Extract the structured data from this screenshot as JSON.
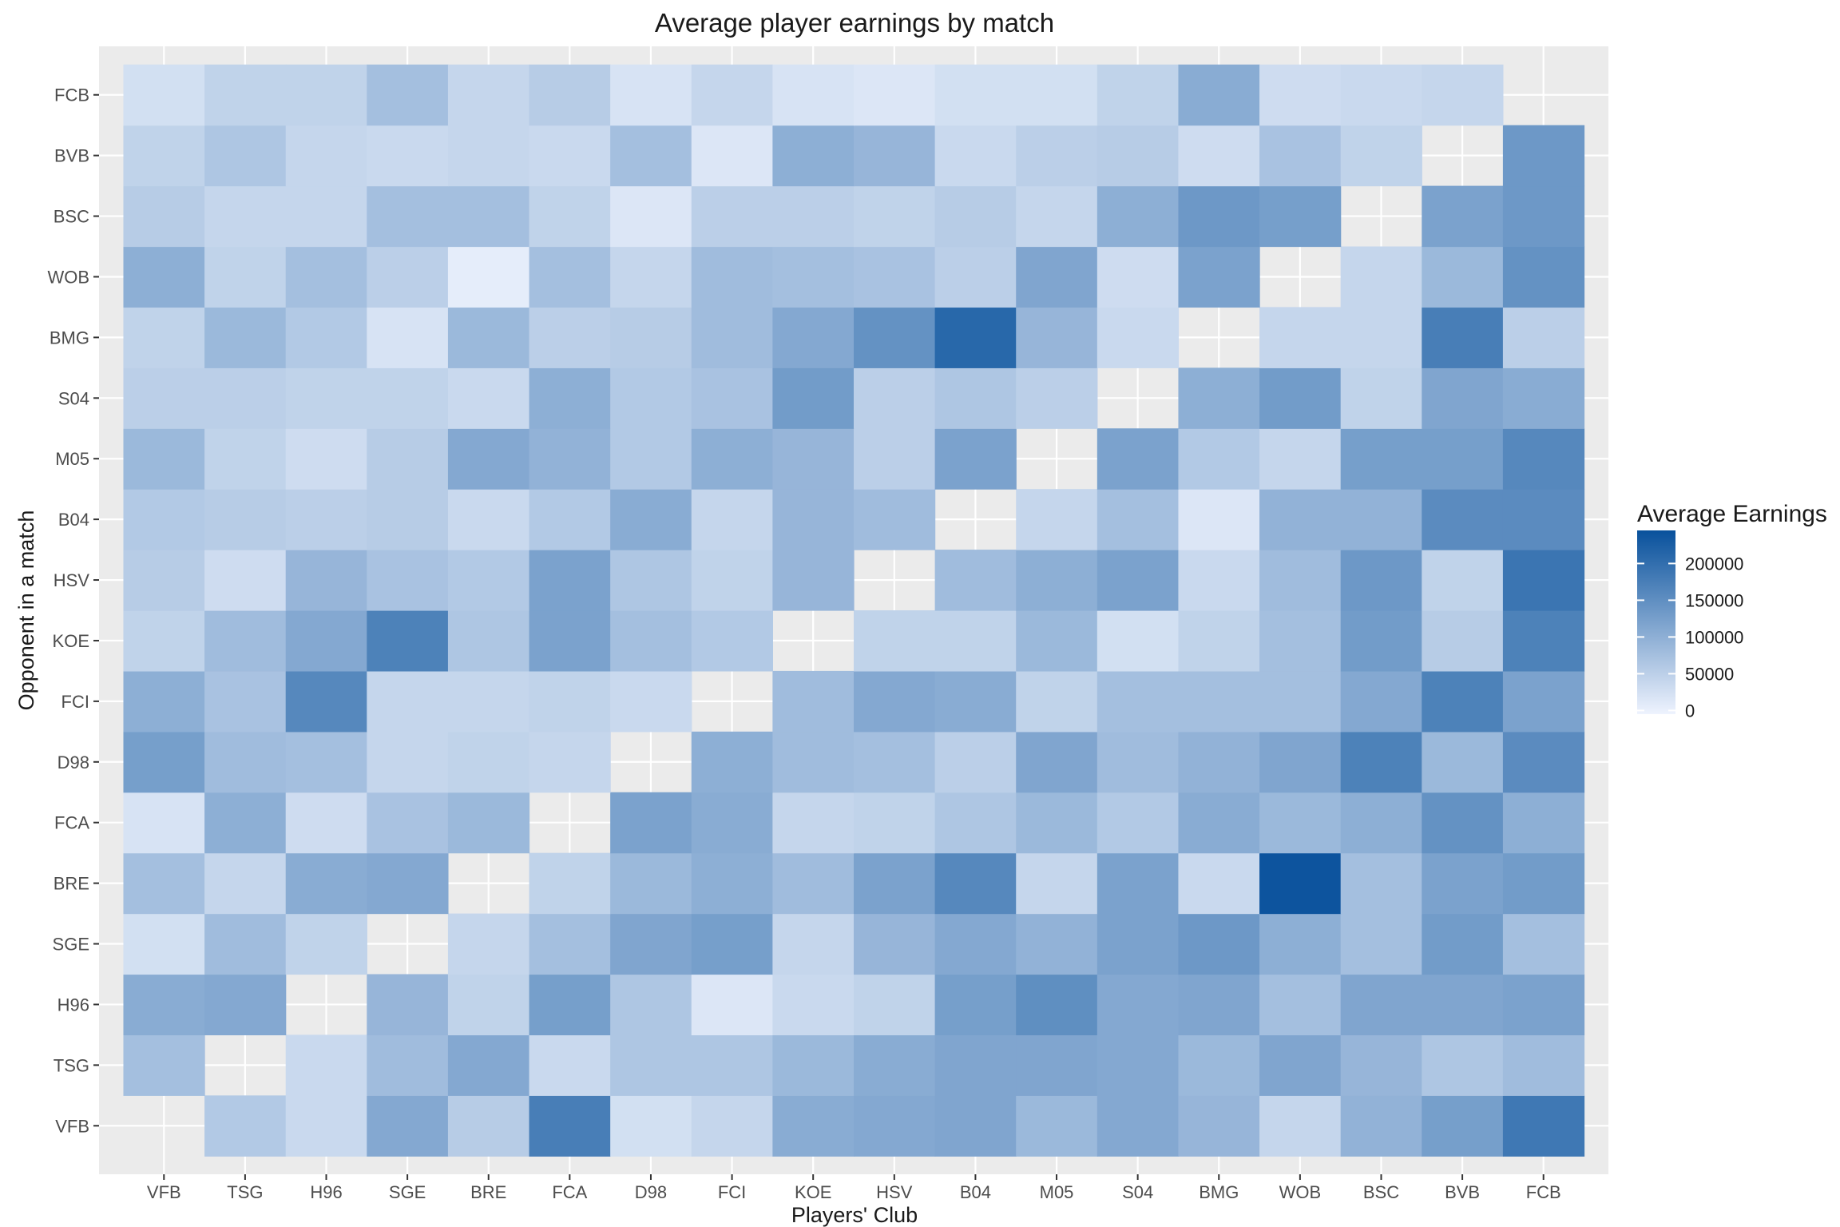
{
  "chart_data": {
    "type": "heatmap",
    "title": "Average player earnings by match",
    "xlabel": "Players' Club",
    "ylabel": "Opponent in a match",
    "x": [
      "VFB",
      "TSG",
      "H96",
      "SGE",
      "BRE",
      "FCA",
      "D98",
      "FCI",
      "KOE",
      "HSV",
      "B04",
      "M05",
      "S04",
      "BMG",
      "WOB",
      "BSC",
      "BVB",
      "FCB"
    ],
    "y": [
      "VFB",
      "TSG",
      "H96",
      "SGE",
      "BRE",
      "FCA",
      "D98",
      "FCI",
      "KOE",
      "HSV",
      "B04",
      "M05",
      "S04",
      "BMG",
      "WOB",
      "BSC",
      "BVB",
      "FCB"
    ],
    "values": [
      [
        null,
        60000,
        35000,
        110000,
        55000,
        175000,
        25000,
        40000,
        105000,
        110000,
        115000,
        85000,
        110000,
        90000,
        40000,
        95000,
        125000,
        185000
      ],
      [
        75000,
        null,
        35000,
        80000,
        110000,
        35000,
        65000,
        65000,
        85000,
        105000,
        115000,
        115000,
        110000,
        85000,
        115000,
        90000,
        65000,
        80000
      ],
      [
        105000,
        110000,
        null,
        90000,
        45000,
        125000,
        65000,
        15000,
        35000,
        45000,
        125000,
        150000,
        110000,
        115000,
        75000,
        115000,
        115000,
        120000
      ],
      [
        25000,
        80000,
        45000,
        null,
        40000,
        75000,
        115000,
        125000,
        40000,
        90000,
        110000,
        95000,
        120000,
        135000,
        100000,
        75000,
        130000,
        75000
      ],
      [
        75000,
        40000,
        105000,
        110000,
        null,
        45000,
        85000,
        100000,
        80000,
        120000,
        160000,
        40000,
        120000,
        35000,
        240000,
        75000,
        120000,
        130000
      ],
      [
        20000,
        100000,
        30000,
        70000,
        85000,
        null,
        120000,
        105000,
        40000,
        45000,
        65000,
        85000,
        60000,
        105000,
        85000,
        100000,
        145000,
        100000
      ],
      [
        125000,
        80000,
        75000,
        40000,
        45000,
        40000,
        null,
        100000,
        80000,
        75000,
        50000,
        115000,
        80000,
        95000,
        115000,
        170000,
        85000,
        155000
      ],
      [
        100000,
        70000,
        160000,
        40000,
        40000,
        45000,
        35000,
        null,
        80000,
        110000,
        105000,
        45000,
        75000,
        75000,
        75000,
        110000,
        170000,
        120000
      ],
      [
        45000,
        80000,
        110000,
        170000,
        65000,
        120000,
        75000,
        60000,
        null,
        45000,
        45000,
        85000,
        25000,
        45000,
        75000,
        130000,
        55000,
        170000
      ],
      [
        55000,
        30000,
        90000,
        70000,
        60000,
        120000,
        65000,
        45000,
        90000,
        null,
        80000,
        100000,
        120000,
        35000,
        80000,
        135000,
        45000,
        190000
      ],
      [
        60000,
        55000,
        50000,
        55000,
        35000,
        60000,
        105000,
        40000,
        90000,
        80000,
        null,
        40000,
        75000,
        15000,
        95000,
        95000,
        155000,
        155000
      ],
      [
        85000,
        45000,
        30000,
        55000,
        110000,
        95000,
        60000,
        100000,
        90000,
        50000,
        120000,
        null,
        120000,
        60000,
        40000,
        125000,
        125000,
        160000
      ],
      [
        50000,
        50000,
        45000,
        45000,
        35000,
        100000,
        60000,
        70000,
        130000,
        50000,
        65000,
        50000,
        null,
        100000,
        130000,
        45000,
        115000,
        105000
      ],
      [
        45000,
        85000,
        60000,
        20000,
        85000,
        50000,
        55000,
        80000,
        110000,
        145000,
        210000,
        90000,
        35000,
        null,
        40000,
        40000,
        175000,
        50000
      ],
      [
        100000,
        45000,
        75000,
        50000,
        5000,
        75000,
        40000,
        80000,
        75000,
        70000,
        50000,
        115000,
        30000,
        120000,
        null,
        40000,
        85000,
        145000
      ],
      [
        55000,
        40000,
        40000,
        75000,
        75000,
        45000,
        15000,
        50000,
        50000,
        45000,
        55000,
        40000,
        100000,
        135000,
        125000,
        null,
        120000,
        135000
      ],
      [
        45000,
        65000,
        40000,
        35000,
        40000,
        35000,
        75000,
        15000,
        100000,
        90000,
        35000,
        50000,
        55000,
        30000,
        70000,
        45000,
        null,
        135000
      ],
      [
        25000,
        45000,
        45000,
        75000,
        40000,
        55000,
        20000,
        40000,
        20000,
        15000,
        25000,
        25000,
        45000,
        105000,
        30000,
        35000,
        40000,
        null
      ]
    ],
    "color_scale": {
      "low": "#eef3fe",
      "high": "#08519c",
      "missing": "#ebebeb",
      "panel": "#ebebeb",
      "grid": "#ffffff"
    },
    "legend": {
      "title": "Average Earnings",
      "position": "right",
      "breaks": [
        0,
        50000,
        100000,
        150000,
        200000
      ],
      "labels": [
        "0",
        "50000",
        "100000",
        "150000",
        "200000"
      ],
      "range": [
        -5000,
        245000
      ]
    },
    "grid": true
  }
}
